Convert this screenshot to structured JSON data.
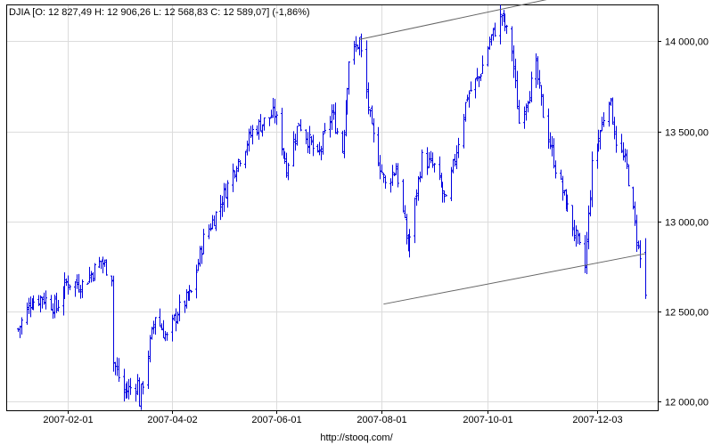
{
  "header": "DJIA [O: 12 827,49  H: 12 906,26  L: 12 568,83  C: 12 589,07] (-1,86%)",
  "footer": "http://stooq.com/",
  "colors": {
    "series": "#0000e0",
    "grid": "#dcdcdc",
    "trend": "#666666"
  },
  "chart_data": {
    "type": "ohlc",
    "title": "DJIA [O: 12 827,49  H: 12 906,26  L: 12 568,83  C: 12 589,07] (-1,86%)",
    "x_tick_labels": [
      "2007-02-01",
      "2007-04-02",
      "2007-06-01",
      "2007-08-01",
      "2007-10-01",
      "2007-12-03"
    ],
    "y_tick_labels": [
      "12 000,00",
      "12 500,00",
      "13 000,00",
      "13 500,00",
      "14 000,00"
    ],
    "y_ticks": [
      12000,
      12500,
      13000,
      13500,
      14000
    ],
    "ylim": [
      11950,
      14200
    ],
    "xlim": [
      "2007-01-02",
      "2007-12-31"
    ],
    "grid": true,
    "ohlc_last": {
      "open": 12827.49,
      "high": 12906.26,
      "low": 12568.83,
      "close": 12589.07,
      "change_pct": -1.86
    },
    "close_anchors": [
      [
        "2007-01-03",
        12400
      ],
      [
        "2007-01-10",
        12550
      ],
      [
        "2007-01-17",
        12580
      ],
      [
        "2007-01-25",
        12520
      ],
      [
        "2007-01-31",
        12660
      ],
      [
        "2007-02-09",
        12650
      ],
      [
        "2007-02-20",
        12780
      ],
      [
        "2007-02-26",
        12700
      ],
      [
        "2007-02-27",
        12220
      ],
      [
        "2007-03-05",
        12050
      ],
      [
        "2007-03-13",
        12100
      ],
      [
        "2007-03-14",
        12000
      ],
      [
        "2007-03-23",
        12480
      ],
      [
        "2007-03-30",
        12350
      ],
      [
        "2007-04-05",
        12500
      ],
      [
        "2007-04-13",
        12600
      ],
      [
        "2007-04-20",
        12900
      ],
      [
        "2007-04-30",
        13100
      ],
      [
        "2007-05-08",
        13300
      ],
      [
        "2007-05-18",
        13500
      ],
      [
        "2007-05-31",
        13600
      ],
      [
        "2007-06-07",
        13300
      ],
      [
        "2007-06-14",
        13550
      ],
      [
        "2007-06-25",
        13350
      ],
      [
        "2007-07-03",
        13600
      ],
      [
        "2007-07-09",
        13400
      ],
      [
        "2007-07-13",
        13900
      ],
      [
        "2007-07-19",
        14000
      ],
      [
        "2007-07-26",
        13500
      ],
      [
        "2007-08-03",
        13200
      ],
      [
        "2007-08-09",
        13300
      ],
      [
        "2007-08-16",
        12850
      ],
      [
        "2007-08-24",
        13350
      ],
      [
        "2007-08-31",
        13300
      ],
      [
        "2007-09-07",
        13100
      ],
      [
        "2007-09-14",
        13450
      ],
      [
        "2007-09-19",
        13700
      ],
      [
        "2007-09-26",
        13800
      ],
      [
        "2007-10-02",
        14000
      ],
      [
        "2007-10-09",
        14150
      ],
      [
        "2007-10-15",
        13950
      ],
      [
        "2007-10-19",
        13550
      ],
      [
        "2007-10-29",
        13850
      ],
      [
        "2007-11-02",
        13600
      ],
      [
        "2007-11-09",
        13300
      ],
      [
        "2007-11-15",
        13100
      ],
      [
        "2007-11-26",
        12750
      ],
      [
        "2007-11-30",
        13300
      ],
      [
        "2007-12-10",
        13700
      ],
      [
        "2007-12-14",
        13450
      ],
      [
        "2007-12-20",
        13300
      ],
      [
        "2007-12-27",
        12850
      ],
      [
        "2007-12-31",
        12589
      ]
    ],
    "trendlines": [
      {
        "from": [
          "2007-07-19",
          14010
        ],
        "to": [
          "2007-11-08",
          14240
        ]
      },
      {
        "from": [
          "2007-08-02",
          12540
        ],
        "to": [
          "2007-12-31",
          12820
        ]
      }
    ]
  }
}
